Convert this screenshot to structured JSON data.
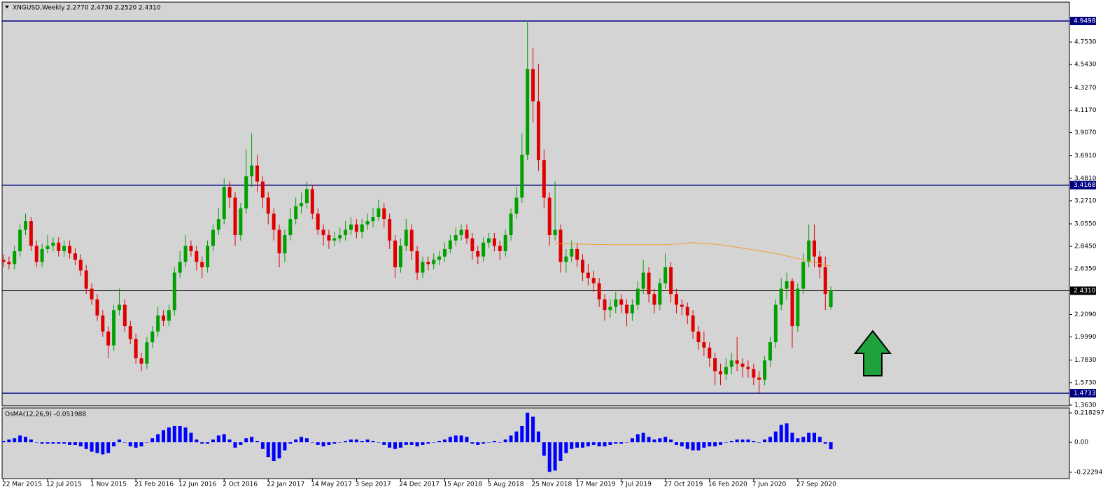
{
  "chart_data": {
    "type": "candlestick",
    "title": "XNGUSD,Weekly",
    "title_values": "2.2770 2.4730 2.2520 2.4310",
    "bull_color": "#00a000",
    "bear_color": "#e00000",
    "x": [
      0,
      2,
      4,
      6,
      8,
      10,
      12,
      14,
      16,
      18,
      20,
      22,
      24,
      26,
      28,
      30,
      32,
      34,
      36,
      38,
      40,
      42,
      44,
      46,
      48,
      50,
      52,
      54,
      56,
      58,
      60,
      62,
      64,
      66,
      68,
      70,
      72,
      74,
      76,
      78,
      80,
      82,
      84,
      86,
      88,
      90,
      92,
      94,
      96,
      98,
      100,
      102,
      104,
      106,
      108,
      110,
      112,
      114,
      116,
      118,
      120,
      122,
      124,
      126,
      128,
      130,
      132,
      134,
      136,
      138,
      140,
      142,
      144,
      146,
      148,
      150,
      152,
      154,
      156,
      158,
      160,
      162,
      164,
      166,
      168,
      170,
      172,
      174,
      176,
      178,
      180,
      182,
      184,
      186,
      188,
      190,
      192,
      194,
      196,
      198,
      200,
      202,
      204,
      206,
      208,
      210,
      212,
      214,
      216,
      218,
      220,
      222,
      224,
      226,
      228,
      230,
      232,
      234,
      236,
      238,
      240,
      242,
      244,
      246,
      248,
      250,
      252,
      254,
      256,
      258,
      260,
      262,
      264,
      266,
      268,
      270,
      272,
      274,
      276,
      278,
      280,
      282,
      284,
      286,
      288,
      290,
      292,
      294,
      296,
      298,
      300
    ],
    "open": [
      2.72,
      2.7,
      2.68,
      2.8,
      3.0,
      3.08,
      2.85,
      2.7,
      2.82,
      2.85,
      2.88,
      2.8,
      2.85,
      2.78,
      2.72,
      2.62,
      2.45,
      2.35,
      2.2,
      2.05,
      1.92,
      2.25,
      2.3,
      2.1,
      1.98,
      1.8,
      1.75,
      1.95,
      2.05,
      2.2,
      2.15,
      2.25,
      2.6,
      2.7,
      2.85,
      2.8,
      2.7,
      2.65,
      2.85,
      3.0,
      3.1,
      3.4,
      3.3,
      2.95,
      3.2,
      3.5,
      3.6,
      3.45,
      3.3,
      3.15,
      3.0,
      2.78,
      2.95,
      3.1,
      3.22,
      3.25,
      3.38,
      3.15,
      3.0,
      2.95,
      2.9,
      2.92,
      2.95,
      3.0,
      3.05,
      2.98,
      3.05,
      3.08,
      3.12,
      3.2,
      3.1,
      2.9,
      2.65,
      2.85,
      3.0,
      2.8,
      2.6,
      2.7,
      2.68,
      2.72,
      2.75,
      2.82,
      2.9,
      2.95,
      3.0,
      2.92,
      2.8,
      2.75,
      2.88,
      2.92,
      2.85,
      2.8,
      2.95,
      3.15,
      3.3,
      3.7,
      4.5,
      4.2,
      3.65,
      3.3,
      2.95,
      3.0,
      2.7,
      2.75,
      2.82,
      2.72,
      2.6,
      2.55,
      2.5,
      2.35,
      2.25,
      2.28,
      2.35,
      2.3,
      2.22,
      2.3,
      2.45,
      2.6,
      2.4,
      2.3,
      2.5,
      2.65,
      2.4,
      2.3,
      2.28,
      2.2,
      2.05,
      1.95,
      1.9,
      1.8,
      1.68,
      1.65,
      1.72,
      1.78,
      1.75,
      1.72,
      1.7,
      1.62,
      1.6,
      1.78,
      1.95,
      2.3,
      2.45,
      2.52,
      2.1,
      2.45,
      2.7,
      2.9,
      2.75,
      2.65,
      2.277
    ],
    "high": [
      2.77,
      2.75,
      2.85,
      3.05,
      3.15,
      3.12,
      2.9,
      2.87,
      2.95,
      2.93,
      2.93,
      2.9,
      2.9,
      2.83,
      2.77,
      2.67,
      2.5,
      2.4,
      2.25,
      2.1,
      2.3,
      2.45,
      2.35,
      2.15,
      2.03,
      1.85,
      2.0,
      2.1,
      2.28,
      2.25,
      2.3,
      2.65,
      2.8,
      2.95,
      2.9,
      2.85,
      2.75,
      2.9,
      3.05,
      3.2,
      3.48,
      3.45,
      3.35,
      3.25,
      3.75,
      3.9,
      3.7,
      3.5,
      3.35,
      3.2,
      3.05,
      3.0,
      3.2,
      3.3,
      3.35,
      3.45,
      3.42,
      3.2,
      3.05,
      3.0,
      2.98,
      3.02,
      3.08,
      3.12,
      3.1,
      3.1,
      3.15,
      3.2,
      3.28,
      3.25,
      3.15,
      2.95,
      2.92,
      3.1,
      3.05,
      2.85,
      2.75,
      2.75,
      2.78,
      2.8,
      2.88,
      2.95,
      3.02,
      3.05,
      3.05,
      2.97,
      2.85,
      2.93,
      2.97,
      2.97,
      2.9,
      3.0,
      3.2,
      3.4,
      3.9,
      4.95,
      4.7,
      4.55,
      3.75,
      3.35,
      3.45,
      3.05,
      2.82,
      2.9,
      2.88,
      2.77,
      2.68,
      2.62,
      2.55,
      2.4,
      2.35,
      2.42,
      2.4,
      2.35,
      2.35,
      2.52,
      2.72,
      2.65,
      2.45,
      2.55,
      2.78,
      2.7,
      2.45,
      2.35,
      2.32,
      2.25,
      2.1,
      2.05,
      1.95,
      1.85,
      1.75,
      1.8,
      1.85,
      2.0,
      1.8,
      1.78,
      1.75,
      1.68,
      1.82,
      2.0,
      2.35,
      2.55,
      2.6,
      2.55,
      2.5,
      2.78,
      3.05,
      3.05,
      2.8,
      2.75,
      2.473
    ],
    "low": [
      2.65,
      2.63,
      2.63,
      2.75,
      2.95,
      2.8,
      2.65,
      2.65,
      2.78,
      2.8,
      2.75,
      2.75,
      2.73,
      2.67,
      2.57,
      2.4,
      2.3,
      2.15,
      2.0,
      1.8,
      1.87,
      2.2,
      2.05,
      1.93,
      1.75,
      1.68,
      1.7,
      1.9,
      2.0,
      2.1,
      2.1,
      2.2,
      2.55,
      2.65,
      2.75,
      2.62,
      2.55,
      2.6,
      2.8,
      2.95,
      3.05,
      3.2,
      2.85,
      2.9,
      3.15,
      3.4,
      3.35,
      3.2,
      3.05,
      2.9,
      2.65,
      2.7,
      2.9,
      3.05,
      3.15,
      3.2,
      3.1,
      2.95,
      2.85,
      2.82,
      2.85,
      2.88,
      2.9,
      2.95,
      2.92,
      2.92,
      3.0,
      3.02,
      3.08,
      3.02,
      2.82,
      2.55,
      2.6,
      2.8,
      2.72,
      2.53,
      2.55,
      2.62,
      2.63,
      2.67,
      2.7,
      2.78,
      2.85,
      2.9,
      2.87,
      2.72,
      2.68,
      2.7,
      2.83,
      2.8,
      2.72,
      2.75,
      2.9,
      3.1,
      3.25,
      3.65,
      4.0,
      3.55,
      3.2,
      2.85,
      2.9,
      2.6,
      2.6,
      2.7,
      2.65,
      2.52,
      2.48,
      2.42,
      2.28,
      2.15,
      2.18,
      2.22,
      2.22,
      2.1,
      2.15,
      2.25,
      2.4,
      2.32,
      2.22,
      2.25,
      2.45,
      2.32,
      2.22,
      2.2,
      2.12,
      1.98,
      1.88,
      1.82,
      1.72,
      1.55,
      1.55,
      1.6,
      1.65,
      1.68,
      1.62,
      1.62,
      1.55,
      1.48,
      1.55,
      1.72,
      1.9,
      2.25,
      2.35,
      1.9,
      2.05,
      2.4,
      2.65,
      2.65,
      2.55,
      2.25,
      2.252
    ],
    "close": [
      2.7,
      2.68,
      2.8,
      3.0,
      3.08,
      2.85,
      2.7,
      2.82,
      2.85,
      2.88,
      2.8,
      2.85,
      2.78,
      2.72,
      2.62,
      2.45,
      2.35,
      2.2,
      2.05,
      1.92,
      2.25,
      2.3,
      2.1,
      1.98,
      1.8,
      1.75,
      1.95,
      2.05,
      2.2,
      2.15,
      2.25,
      2.6,
      2.7,
      2.85,
      2.8,
      2.7,
      2.65,
      2.85,
      3.0,
      3.1,
      3.4,
      3.3,
      2.95,
      3.2,
      3.5,
      3.6,
      3.45,
      3.3,
      3.15,
      3.0,
      2.78,
      2.95,
      3.1,
      3.22,
      3.25,
      3.38,
      3.15,
      3.0,
      2.95,
      2.9,
      2.92,
      2.95,
      3.0,
      3.05,
      2.98,
      3.05,
      3.08,
      3.12,
      3.2,
      3.1,
      2.9,
      2.65,
      2.85,
      3.0,
      2.8,
      2.6,
      2.7,
      2.68,
      2.72,
      2.75,
      2.82,
      2.9,
      2.95,
      3.0,
      2.92,
      2.8,
      2.75,
      2.88,
      2.92,
      2.85,
      2.8,
      2.95,
      3.15,
      3.3,
      3.7,
      4.5,
      4.2,
      3.65,
      3.3,
      2.95,
      3.0,
      2.7,
      2.75,
      2.82,
      2.72,
      2.6,
      2.55,
      2.5,
      2.35,
      2.25,
      2.28,
      2.35,
      2.3,
      2.22,
      2.3,
      2.45,
      2.6,
      2.4,
      2.3,
      2.5,
      2.65,
      2.4,
      2.3,
      2.28,
      2.2,
      2.05,
      1.95,
      1.9,
      1.8,
      1.68,
      1.65,
      1.72,
      1.78,
      1.75,
      1.72,
      1.7,
      1.62,
      1.6,
      1.78,
      1.95,
      2.3,
      2.45,
      2.52,
      2.1,
      2.45,
      2.7,
      2.9,
      2.75,
      2.65,
      2.4,
      2.431
    ],
    "ma": {
      "color": "#f0a030",
      "x": [
        200,
        220,
        240,
        250,
        260,
        270,
        280,
        290,
        300
      ],
      "values": [
        2.87,
        2.86,
        2.86,
        2.88,
        2.86,
        2.82,
        2.78,
        2.72,
        2.66
      ]
    },
    "hlines": [
      {
        "value": 4.9498,
        "label": "4.9498",
        "color": "#000080"
      },
      {
        "value": 3.4168,
        "label": "3.4168",
        "color": "#000080"
      },
      {
        "value": 2.431,
        "label": "2.4310",
        "color": "#000000"
      },
      {
        "value": 1.4733,
        "label": "1.4733",
        "color": "#000080"
      }
    ],
    "xlim": [
      -0.5,
      386.5
    ],
    "xticks": [
      {
        "value": 0,
        "label": "22 Mar 2015"
      },
      {
        "value": 16,
        "label": "12 Jul 2015"
      },
      {
        "value": 32,
        "label": "1 Nov 2015"
      },
      {
        "value": 48,
        "label": "21 Feb 2016"
      },
      {
        "value": 64,
        "label": "12 Jun 2016"
      },
      {
        "value": 80,
        "label": "2 Oct 2016"
      },
      {
        "value": 96,
        "label": "22 Jan 2017"
      },
      {
        "value": 112,
        "label": "14 May 2017"
      },
      {
        "value": 128,
        "label": "3 Sep 2017"
      },
      {
        "value": 144,
        "label": "24 Dec 2017"
      },
      {
        "value": 160,
        "label": "15 Apr 2018"
      },
      {
        "value": 176,
        "label": "5 Aug 2018"
      },
      {
        "value": 192,
        "label": "25 Nov 2018"
      },
      {
        "value": 208,
        "label": "17 Mar 2019"
      },
      {
        "value": 224,
        "label": "7 Jul 2019"
      },
      {
        "value": 240,
        "label": "27 Oct 2019"
      },
      {
        "value": 256,
        "label": "16 Feb 2020"
      },
      {
        "value": 272,
        "label": "7 Jun 2020"
      },
      {
        "value": 288,
        "label": "27 Sep 2020"
      }
    ],
    "ylim": [
      1.356,
      5.126
    ],
    "yticks": [
      {
        "value": 1.363,
        "label": "1.3630"
      },
      {
        "value": 1.573,
        "label": "1.5730"
      },
      {
        "value": 1.783,
        "label": "1.7830"
      },
      {
        "value": 1.999,
        "label": "1.9990"
      },
      {
        "value": 2.209,
        "label": "2.2090"
      },
      {
        "value": 2.635,
        "label": "2.6350"
      },
      {
        "value": 2.845,
        "label": "2.8450"
      },
      {
        "value": 3.055,
        "label": "3.0550"
      },
      {
        "value": 3.271,
        "label": "3.2710"
      },
      {
        "value": 3.481,
        "label": "3.4810"
      },
      {
        "value": 3.691,
        "label": "3.6910"
      },
      {
        "value": 3.907,
        "label": "3.9070"
      },
      {
        "value": 4.117,
        "label": "4.1170"
      },
      {
        "value": 4.327,
        "label": "4.3270"
      },
      {
        "value": 4.543,
        "label": "4.5430"
      },
      {
        "value": 4.753,
        "label": "4.7530"
      }
    ],
    "indicator": {
      "label": "OsMA(12,26,9) -0.051988",
      "color": "#0000ff",
      "values": [
        0.01,
        0.02,
        0.03,
        0.05,
        0.04,
        0.02,
        0.0,
        -0.01,
        -0.01,
        -0.01,
        -0.01,
        -0.01,
        -0.02,
        -0.02,
        -0.03,
        -0.05,
        -0.07,
        -0.08,
        -0.09,
        -0.08,
        -0.03,
        0.02,
        0.0,
        -0.03,
        -0.04,
        -0.03,
        0.0,
        0.03,
        0.06,
        0.09,
        0.11,
        0.12,
        0.12,
        0.11,
        0.07,
        0.02,
        -0.01,
        -0.01,
        0.02,
        0.05,
        0.06,
        0.02,
        -0.04,
        -0.02,
        0.03,
        0.04,
        0.01,
        -0.05,
        -0.11,
        -0.14,
        -0.12,
        -0.06,
        -0.01,
        0.02,
        0.04,
        0.03,
        0.0,
        -0.02,
        -0.03,
        -0.02,
        -0.01,
        0.0,
        0.01,
        0.02,
        0.02,
        0.01,
        0.02,
        0.01,
        0.0,
        -0.02,
        -0.04,
        -0.05,
        -0.04,
        -0.02,
        -0.02,
        -0.03,
        -0.02,
        -0.01,
        0.0,
        0.01,
        0.02,
        0.04,
        0.05,
        0.05,
        0.04,
        -0.01,
        -0.02,
        -0.01,
        0.0,
        0.01,
        0.0,
        0.02,
        0.05,
        0.08,
        0.12,
        0.22,
        0.19,
        0.08,
        -0.1,
        -0.22,
        -0.21,
        -0.14,
        -0.08,
        -0.05,
        -0.04,
        -0.04,
        -0.03,
        -0.02,
        -0.03,
        -0.03,
        -0.02,
        -0.01,
        -0.01,
        0.0,
        0.03,
        0.06,
        0.07,
        0.04,
        0.02,
        0.03,
        0.04,
        0.02,
        -0.02,
        -0.03,
        -0.05,
        -0.06,
        -0.06,
        -0.04,
        -0.03,
        -0.03,
        -0.02,
        0.0,
        0.01,
        0.02,
        0.02,
        0.02,
        0.01,
        0.0,
        0.02,
        0.04,
        0.08,
        0.13,
        0.14,
        0.07,
        0.03,
        0.04,
        0.07,
        0.07,
        0.04,
        -0.01,
        -0.051988
      ],
      "ylim": [
        -0.27,
        0.255
      ],
      "yticks": [
        0.218297,
        {
          "value": 0,
          "label": "0.00"
        },
        -0.22294
      ]
    }
  }
}
